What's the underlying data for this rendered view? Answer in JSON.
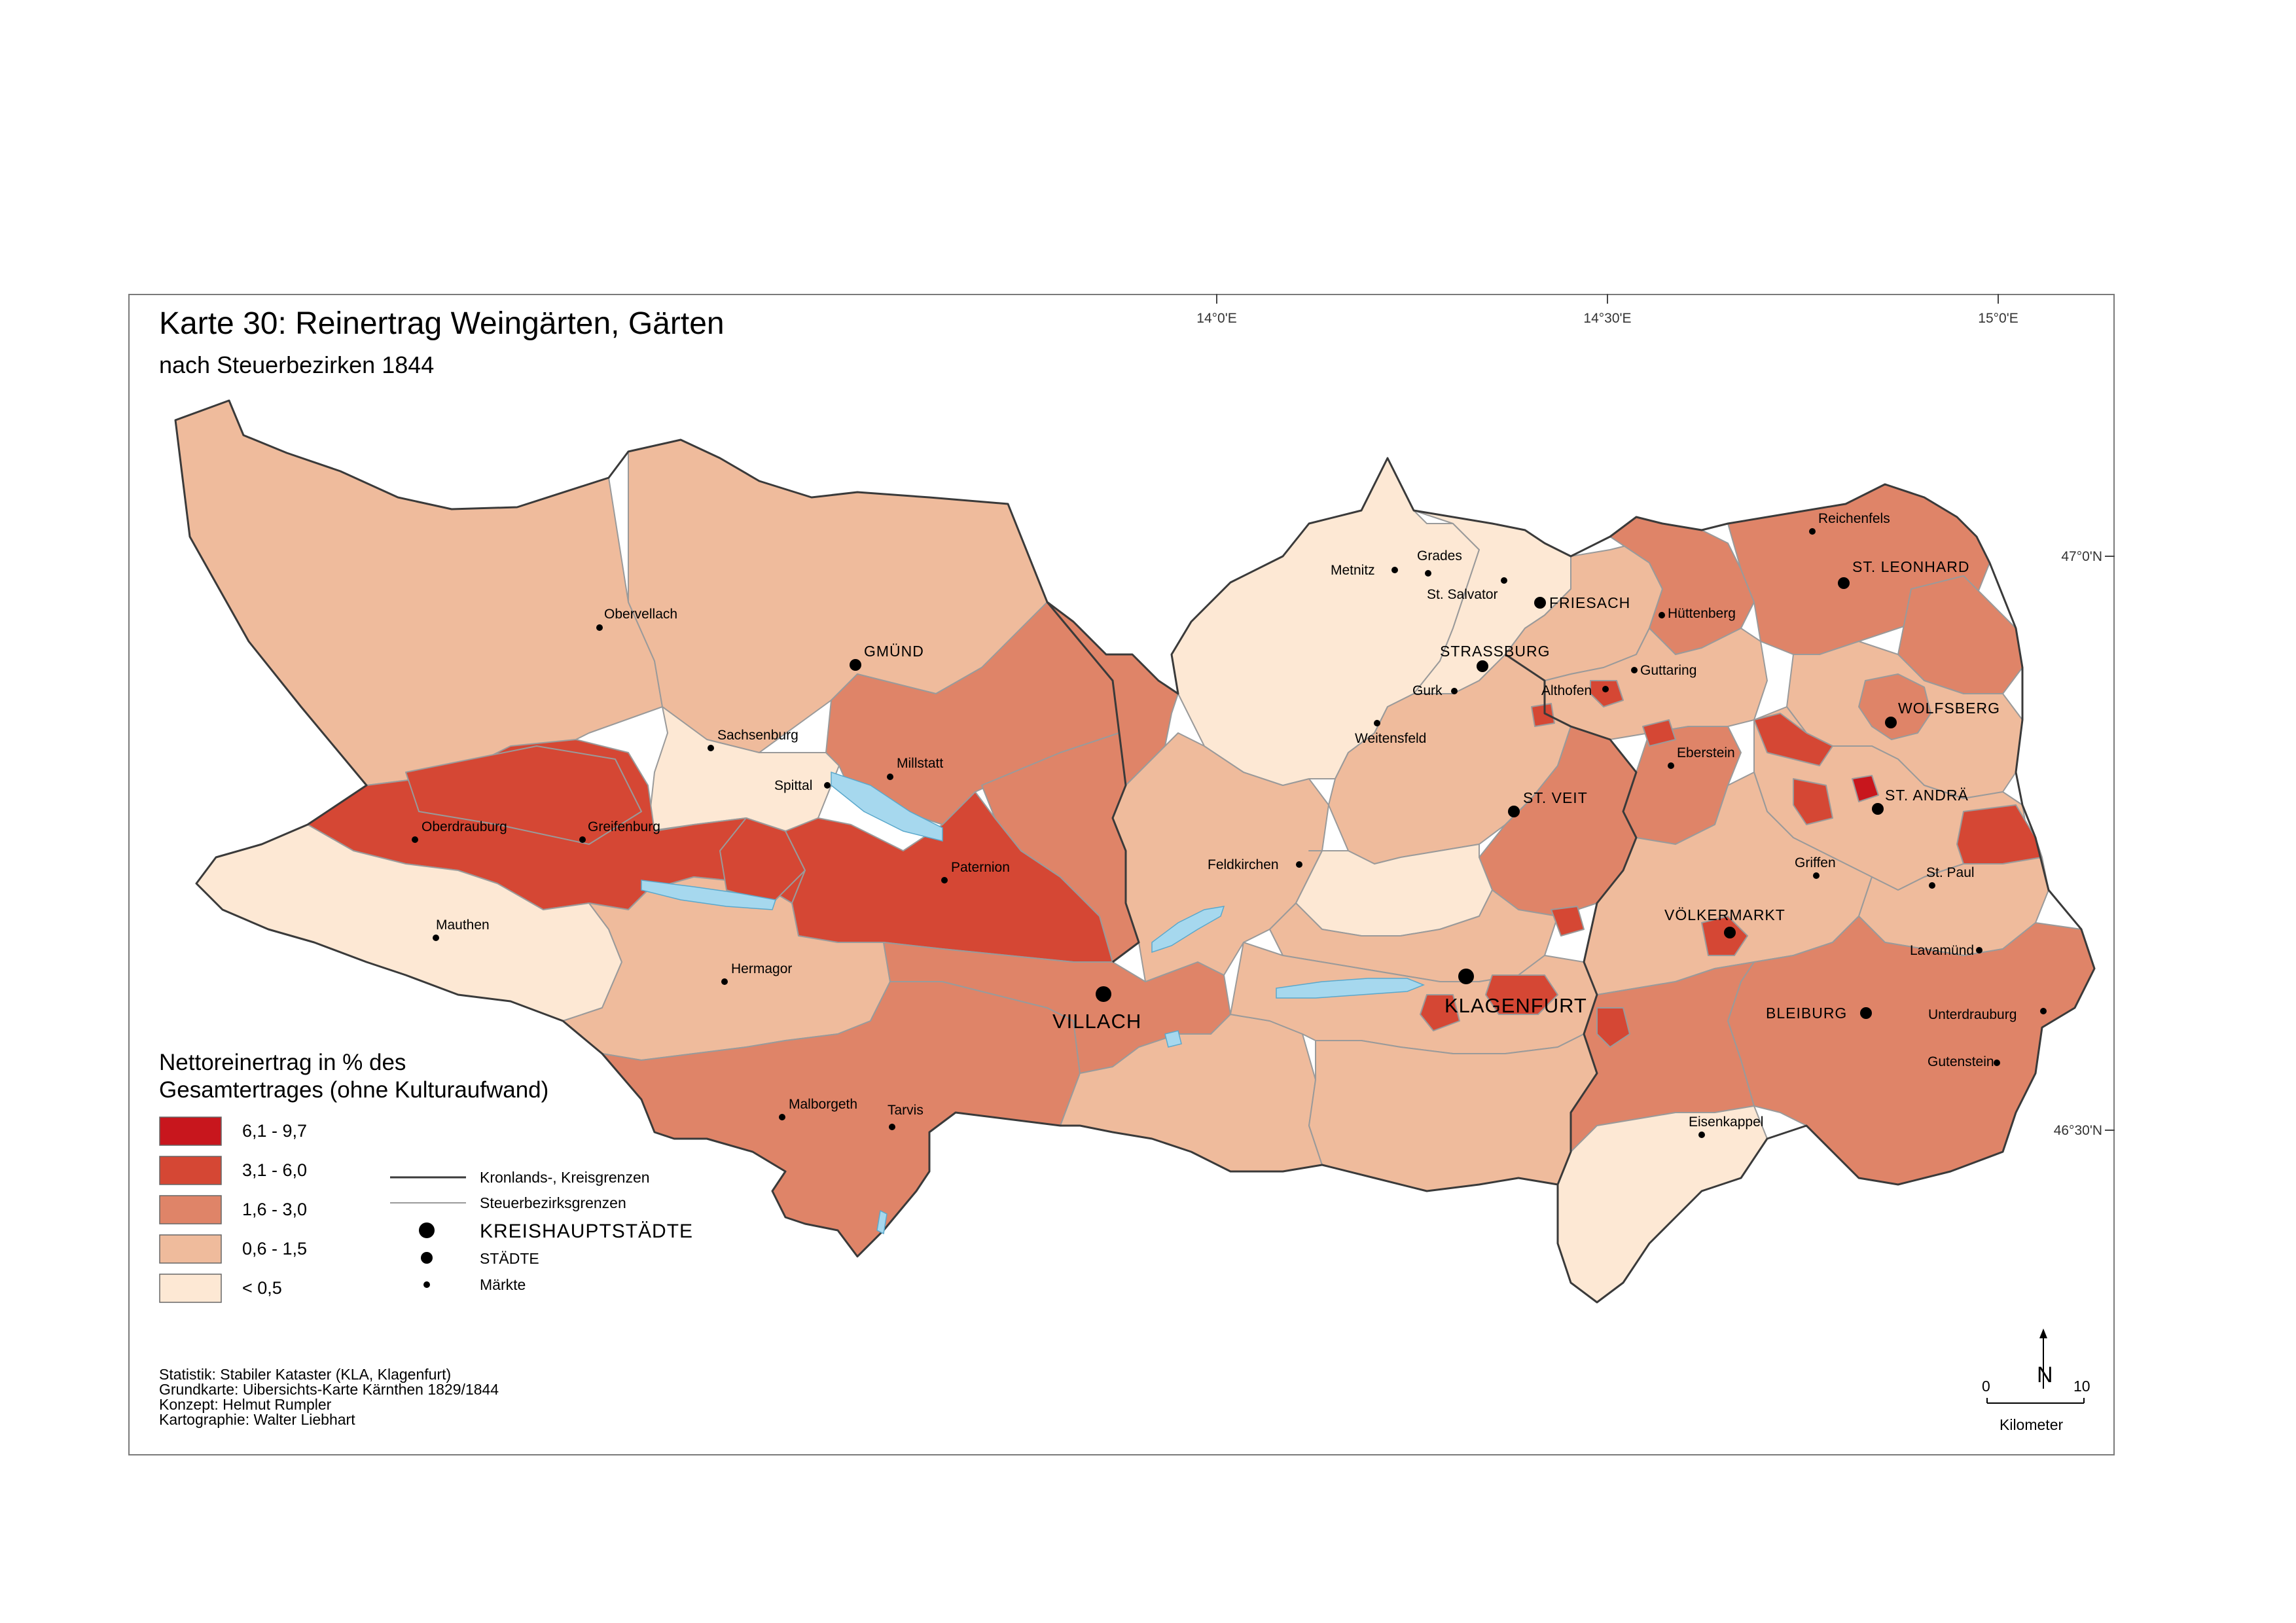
{
  "title": "Karte 30: Reinertrag Weingärten, Gärten",
  "subtitle": "nach Steuerbezirken 1844",
  "graticule": {
    "lon": [
      "14°0'E",
      "14°30'E",
      "15°0'E"
    ],
    "lat": [
      "47°0'N",
      "46°30'N"
    ]
  },
  "legend": {
    "title_line1": "Nettoreinertrag in % des",
    "title_line2": "Gesamtertrages (ohne Kulturaufwand)",
    "classes": [
      {
        "label": "6,1 - 9,7",
        "color": "#c8161d"
      },
      {
        "label": "3,1 - 6,0",
        "color": "#d54734"
      },
      {
        "label": "1,6 - 3,0",
        "color": "#df8468"
      },
      {
        "label": "0,6 - 1,5",
        "color": "#efbb9c"
      },
      {
        "label": "< 0,5",
        "color": "#fde8d4"
      }
    ],
    "lines": [
      {
        "label": "Kronlands-, Kreisgrenzen"
      },
      {
        "label": "Steuerbezirksgrenzen"
      }
    ],
    "points": [
      {
        "label": "KREISHAUPTSTÄDTE"
      },
      {
        "label": "STÄDTE"
      },
      {
        "label": "Märkte"
      }
    ]
  },
  "places": {
    "kreis": [
      "VILLACH",
      "KLAGENFURT"
    ],
    "staedte": [
      "GMÜND",
      "FRIESACH",
      "STRASSBURG",
      "ST. VEIT",
      "ST. LEONHARD",
      "WOLFSBERG",
      "ST. ANDRÄ",
      "VÖLKERMARKT",
      "BLEIBURG"
    ],
    "maerkte": [
      "Obervellach",
      "Sachsenburg",
      "Millstatt",
      "Spittal",
      "Oberdrauburg",
      "Greifenburg",
      "Paternion",
      "Mauthen",
      "Hermagor",
      "Malborgeth",
      "Tarvis",
      "Metnitz",
      "Grades",
      "St. Salvator",
      "Hüttenberg",
      "Guttaring",
      "Gurk",
      "Althofen",
      "Weitensfeld",
      "Eberstein",
      "Feldkirchen",
      "Reichenfels",
      "Griffen",
      "St. Paul",
      "Lavamünd",
      "Unterdrauburg",
      "Gutenstein",
      "Eisenkappel"
    ]
  },
  "colors": {
    "water": "#a6d8ee",
    "boundary": "#3a3a3a",
    "district_boundary": "#9a9a9a"
  },
  "scale": {
    "start": "0",
    "end": "10",
    "unit": "Kilometer",
    "north": "N"
  },
  "credits": [
    "Statistik: Stabiler Kataster (KLA, Klagenfurt)",
    "Grundkarte: Uibersichts-Karte Kärnthen 1829/1844",
    "Konzept: Helmut Rumpler",
    "Kartographie: Walter Liebhart"
  ]
}
